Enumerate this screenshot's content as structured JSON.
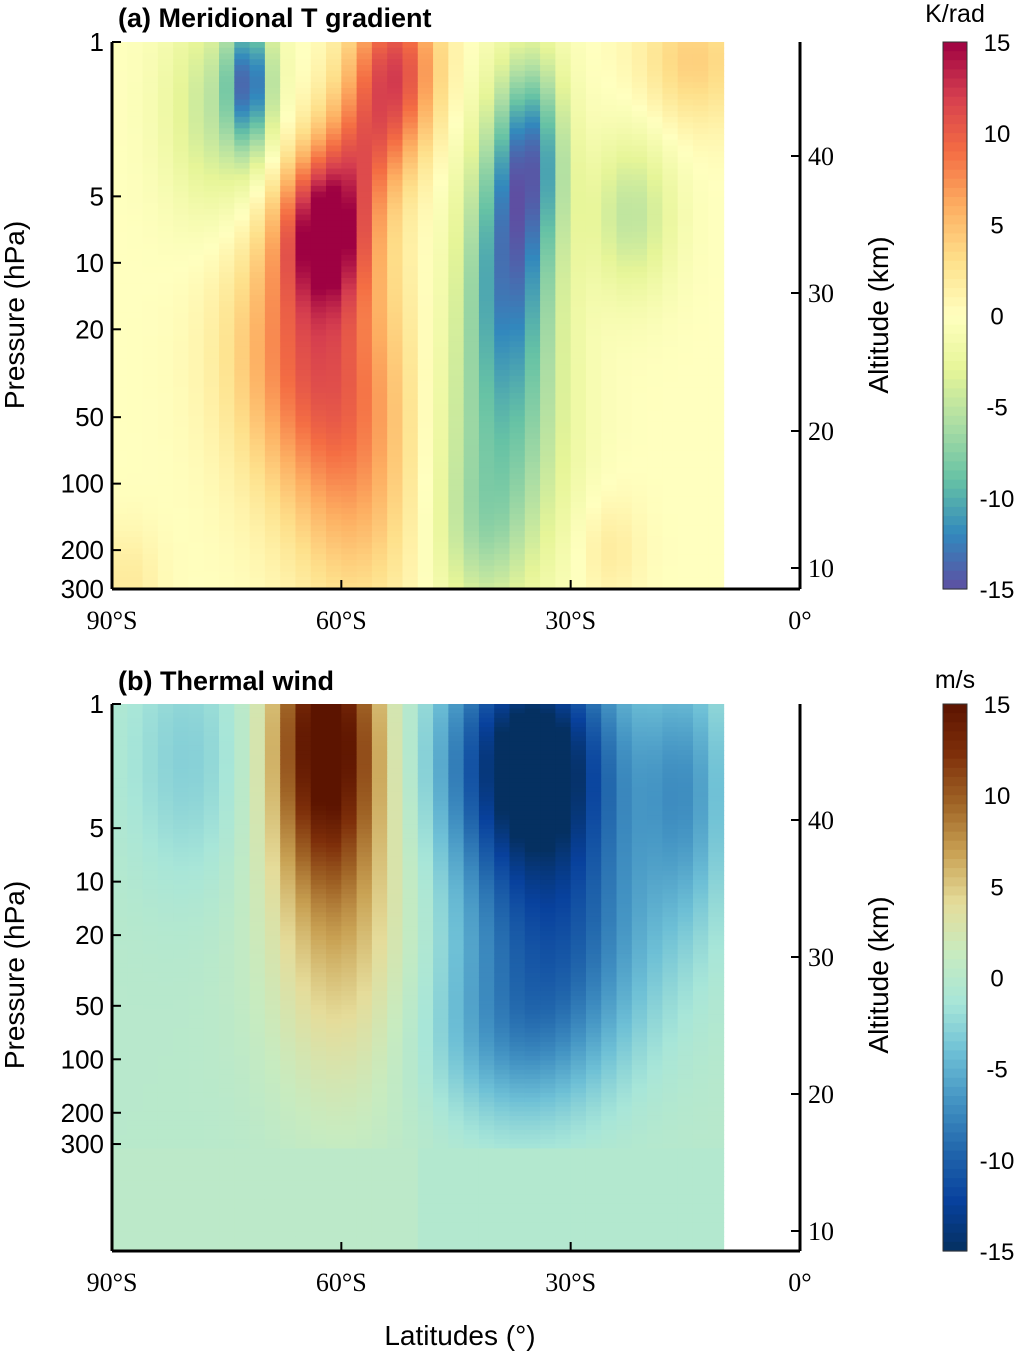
{
  "figure": {
    "xlabel": "Latitudes (°)"
  },
  "chart_data": [
    {
      "type": "heatmap",
      "panel": "a",
      "title": "(a) Meridional T gradient",
      "ylabel": "Pressure (hPa)",
      "ylabel_right": "Altitude (km)",
      "colorbar_unit": "K/rad",
      "colormap": [
        "#5e4fa2",
        "#3288bd",
        "#66c2a5",
        "#abdda4",
        "#e6f598",
        "#ffffbf",
        "#fee08b",
        "#fdae61",
        "#f46d43",
        "#d53e4f",
        "#9e0142"
      ],
      "clim": [
        -15,
        15
      ],
      "colorbar_ticks": [
        "15",
        "10",
        "5",
        "0",
        "-5",
        "-10",
        "-15"
      ],
      "colorbar_tick_values": [
        15,
        10,
        5,
        0,
        -5,
        -10,
        -15
      ],
      "x_ticks": [
        "90°S",
        "60°S",
        "30°S",
        "0°"
      ],
      "x_tick_values": [
        -90,
        -60,
        -30,
        0
      ],
      "y_ticks": [
        "1",
        "5",
        "10",
        "20",
        "50",
        "100",
        "200",
        "300"
      ],
      "y_tick_values": [
        1,
        5,
        10,
        20,
        50,
        100,
        200,
        300
      ],
      "y_range": [
        1,
        300
      ],
      "right_ticks": [
        "40",
        "30",
        "20",
        "10"
      ],
      "right_tick_values": [
        40,
        30,
        20,
        10
      ],
      "x_range": [
        -90,
        0
      ],
      "data_extent_lat": [
        -90,
        -10
      ],
      "blobs": [
        {
          "lat": -62,
          "p": 7,
          "value": 14,
          "slat": 4,
          "slp": 0.55
        },
        {
          "lat": -64,
          "p": 25,
          "value": 9,
          "slat": 7,
          "slp": 1.0
        },
        {
          "lat": -58,
          "p": 90,
          "value": 5,
          "slat": 6,
          "slp": 1.1
        },
        {
          "lat": -53,
          "p": 1.3,
          "value": 11,
          "slat": 4,
          "slp": 0.6
        },
        {
          "lat": -57,
          "p": 3,
          "value": 6,
          "slat": 4,
          "slp": 0.5
        },
        {
          "lat": -72,
          "p": 1.5,
          "value": -11,
          "slat": 2,
          "slp": 0.5
        },
        {
          "lat": -76,
          "p": 2,
          "value": -5,
          "slat": 5,
          "slp": 0.8
        },
        {
          "lat": -38,
          "p": 9,
          "value": -11,
          "slat": 4,
          "slp": 1.0
        },
        {
          "lat": -35,
          "p": 3,
          "value": -9,
          "slat": 3,
          "slp": 0.7
        },
        {
          "lat": -39,
          "p": 60,
          "value": -7,
          "slat": 6,
          "slp": 1.1
        },
        {
          "lat": -42,
          "p": 180,
          "value": -3,
          "slat": 4,
          "slp": 0.6
        },
        {
          "lat": -22,
          "p": 6,
          "value": -5,
          "slat": 4,
          "slp": 0.6
        },
        {
          "lat": -14,
          "p": 1.2,
          "value": 4,
          "slat": 5,
          "slp": 0.5
        },
        {
          "lat": -88,
          "p": 280,
          "value": 2,
          "slat": 3,
          "slp": 0.4
        },
        {
          "lat": -25,
          "p": 200,
          "value": 2,
          "slat": 3,
          "slp": 0.4
        }
      ]
    },
    {
      "type": "heatmap",
      "panel": "b",
      "title": "(b) Thermal wind",
      "ylabel": "Pressure (hPa)",
      "ylabel_right": "Altitude (km)",
      "colorbar_unit": "m/s",
      "colormap": [
        "#053061",
        "#08419d",
        "#2166ac",
        "#4393c3",
        "#6ec0d6",
        "#a8e6d8",
        "#c8ebbf",
        "#e5dc9a",
        "#c9a254",
        "#a06426",
        "#7e2f0a",
        "#5c1400"
      ],
      "clim": [
        -15,
        15
      ],
      "colorbar_ticks": [
        "15",
        "10",
        "5",
        "0",
        "-5",
        "-10",
        "-15"
      ],
      "colorbar_tick_values": [
        15,
        10,
        5,
        0,
        -5,
        -10,
        -15
      ],
      "x_ticks": [
        "90°S",
        "60°S",
        "30°S",
        "0°"
      ],
      "x_tick_values": [
        -90,
        -60,
        -30,
        0
      ],
      "y_ticks": [
        "1",
        "5",
        "10",
        "20",
        "50",
        "100",
        "200",
        "300"
      ],
      "y_tick_values": [
        1,
        5,
        10,
        20,
        50,
        100,
        200,
        300
      ],
      "y_range": [
        1,
        1200
      ],
      "right_ticks": [
        "40",
        "30",
        "20",
        "10"
      ],
      "right_tick_values": [
        40,
        30,
        20,
        10
      ],
      "x_range": [
        -90,
        0
      ],
      "data_extent_lat": [
        -90,
        -10
      ],
      "blobs": [
        {
          "lat": -62,
          "p": 1.5,
          "value": 16,
          "slat": 5,
          "slp": 1.3
        },
        {
          "lat": -60,
          "p": 20,
          "value": 5,
          "slat": 7,
          "slp": 1.6
        },
        {
          "lat": -35,
          "p": 2,
          "value": -17,
          "slat": 8,
          "slp": 1.1
        },
        {
          "lat": -32,
          "p": 20,
          "value": -9,
          "slat": 9,
          "slp": 1.2
        },
        {
          "lat": -38,
          "p": 80,
          "value": -4,
          "slat": 8,
          "slp": 0.8
        },
        {
          "lat": -80,
          "p": 2,
          "value": -3,
          "slat": 6,
          "slp": 1.2
        },
        {
          "lat": -15,
          "p": 3,
          "value": -6,
          "slat": 4,
          "slp": 1.2
        }
      ]
    }
  ]
}
